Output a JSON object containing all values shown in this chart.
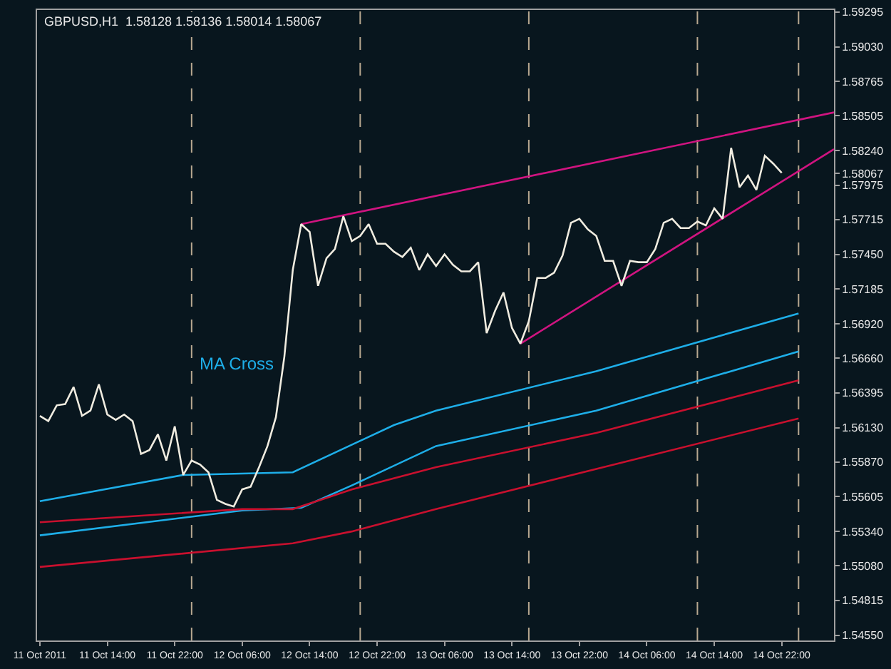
{
  "chart_data": {
    "type": "line",
    "title": "GBPUSD,H1  1.58128 1.58136 1.58014 1.58067",
    "annotations": [
      "MA Cross"
    ],
    "xlim": [
      "2011-10-11T05:40",
      "2011-10-15T04:12"
    ],
    "ylim": [
      1.5451,
      1.5931
    ],
    "xticks": [
      {
        "value": "2011-10-11T06:00",
        "label": "11 Oct 2011"
      },
      {
        "value": "2011-10-11T14:00",
        "label": "11 Oct 14:00"
      },
      {
        "value": "2011-10-11T22:00",
        "label": "11 Oct 22:00"
      },
      {
        "value": "2011-10-12T06:00",
        "label": "12 Oct 06:00"
      },
      {
        "value": "2011-10-12T14:00",
        "label": "12 Oct 14:00"
      },
      {
        "value": "2011-10-12T22:00",
        "label": "12 Oct 22:00"
      },
      {
        "value": "2011-10-13T06:00",
        "label": "13 Oct 06:00"
      },
      {
        "value": "2011-10-13T14:00",
        "label": "13 Oct 14:00"
      },
      {
        "value": "2011-10-13T22:00",
        "label": "13 Oct 22:00"
      },
      {
        "value": "2011-10-14T06:00",
        "label": "14 Oct 06:00"
      },
      {
        "value": "2011-10-14T14:00",
        "label": "14 Oct 14:00"
      },
      {
        "value": "2011-10-14T22:00",
        "label": "14 Oct 22:00"
      }
    ],
    "yticks": [
      {
        "value": 1.5455,
        "label": "1.54550"
      },
      1.54815,
      {
        "value": 1.5508,
        "label": "1.55080"
      },
      {
        "value": 1.5534,
        "label": "1.55340"
      },
      1.55605,
      {
        "value": 1.5587,
        "label": "1.55870"
      },
      {
        "value": 1.5613,
        "label": "1.56130"
      },
      1.56395,
      {
        "value": 1.5666,
        "label": "1.56660"
      },
      {
        "value": 1.5692,
        "label": "1.56920"
      },
      1.57185,
      {
        "value": 1.5745,
        "label": "1.57450"
      },
      1.57715,
      1.57975,
      1.58067,
      {
        "value": 1.5824,
        "label": "1.58240"
      },
      1.58505,
      1.58765,
      {
        "value": 1.5903,
        "label": "1.59030"
      },
      1.59295
    ],
    "grid": false,
    "marker": "none",
    "ref_lines": [
      {
        "axis": "x",
        "value": "2011-10-12T00:00",
        "color": "#b8a890",
        "line_style": "dashed"
      },
      {
        "axis": "x",
        "value": "2011-10-12T20:00",
        "color": "#b8a890",
        "line_style": "dashed"
      },
      {
        "axis": "x",
        "value": "2011-10-13T16:00",
        "color": "#b8a890",
        "line_style": "dashed"
      },
      {
        "axis": "x",
        "value": "2011-10-14T12:00",
        "color": "#b8a890",
        "line_style": "dashed"
      },
      {
        "axis": "x",
        "value": "2011-10-15T00:00",
        "color": "#b8a890",
        "line_style": "dashed"
      }
    ],
    "series": [
      {
        "color": "#1eaee8",
        "x": [
          "2011-10-11T06:00",
          "2011-10-11T23:00",
          "2011-10-12T12:00",
          "2011-10-13T00:00",
          "2011-10-13T05:00",
          "2011-10-14T00:00",
          "2011-10-15T00:00"
        ],
        "values": [
          1.5557,
          1.5577,
          1.5579,
          1.5615,
          1.5626,
          1.5656,
          1.57
        ]
      },
      {
        "color": "#1eaee8",
        "x": [
          "2011-10-11T06:00",
          "2011-10-12T06:00",
          "2011-10-12T13:00",
          "2011-10-12T19:00",
          "2011-10-13T05:00",
          "2011-10-14T00:00",
          "2011-10-15T00:00"
        ],
        "values": [
          1.5531,
          1.555,
          1.5552,
          1.5569,
          1.5599,
          1.5626,
          1.5671
        ]
      },
      {
        "color": "#c8102e",
        "x": [
          "2011-10-11T06:00",
          "2011-10-12T06:00",
          "2011-10-12T12:00",
          "2011-10-12T19:00",
          "2011-10-13T05:00",
          "2011-10-14T00:00",
          "2011-10-15T00:00"
        ],
        "values": [
          1.5541,
          1.5551,
          1.5551,
          1.5566,
          1.5583,
          1.5609,
          1.5649
        ]
      },
      {
        "color": "#c8102e",
        "x": [
          "2011-10-11T06:00",
          "2011-10-12T12:00",
          "2011-10-12T19:00",
          "2011-10-13T05:00",
          "2011-10-14T04:00",
          "2011-10-15T00:00"
        ],
        "values": [
          1.5507,
          1.5525,
          1.5534,
          1.5551,
          1.5588,
          1.562
        ]
      },
      {
        "color": "#d01480",
        "x": [
          "2011-10-12T13:00",
          "2011-10-15T04:12"
        ],
        "values": [
          1.5768,
          1.5853
        ]
      },
      {
        "color": "#d01480",
        "x": [
          "2011-10-13T15:00",
          "2011-10-15T04:12"
        ],
        "values": [
          1.5677,
          1.5825
        ]
      },
      {
        "color": "#f0ece0",
        "x": [
          "2011-10-11T06:00",
          "2011-10-11T07:00",
          "2011-10-11T08:00",
          "2011-10-11T09:00",
          "2011-10-11T10:00",
          "2011-10-11T11:00",
          "2011-10-11T12:00",
          "2011-10-11T13:00",
          "2011-10-11T14:00",
          "2011-10-11T15:00",
          "2011-10-11T16:00",
          "2011-10-11T17:00",
          "2011-10-11T18:00",
          "2011-10-11T19:00",
          "2011-10-11T20:00",
          "2011-10-11T21:00",
          "2011-10-11T22:00",
          "2011-10-11T23:00",
          "2011-10-12T00:00",
          "2011-10-12T01:00",
          "2011-10-12T02:00",
          "2011-10-12T03:00",
          "2011-10-12T04:00",
          "2011-10-12T05:00",
          "2011-10-12T06:00",
          "2011-10-12T07:00",
          "2011-10-12T08:00",
          "2011-10-12T09:00",
          "2011-10-12T10:00",
          "2011-10-12T11:00",
          "2011-10-12T12:00",
          "2011-10-12T13:00",
          "2011-10-12T14:00",
          "2011-10-12T15:00",
          "2011-10-12T16:00",
          "2011-10-12T17:00",
          "2011-10-12T18:00",
          "2011-10-12T19:00",
          "2011-10-12T20:00",
          "2011-10-12T21:00",
          "2011-10-12T22:00",
          "2011-10-12T23:00",
          "2011-10-13T00:00",
          "2011-10-13T01:00",
          "2011-10-13T02:00",
          "2011-10-13T03:00",
          "2011-10-13T04:00",
          "2011-10-13T05:00",
          "2011-10-13T06:00",
          "2011-10-13T07:00",
          "2011-10-13T08:00",
          "2011-10-13T09:00",
          "2011-10-13T10:00",
          "2011-10-13T11:00",
          "2011-10-13T12:00",
          "2011-10-13T13:00",
          "2011-10-13T14:00",
          "2011-10-13T15:00",
          "2011-10-13T16:00",
          "2011-10-13T17:00",
          "2011-10-13T18:00",
          "2011-10-13T19:00",
          "2011-10-13T20:00",
          "2011-10-13T21:00",
          "2011-10-13T22:00",
          "2011-10-13T23:00",
          "2011-10-14T00:00",
          "2011-10-14T01:00",
          "2011-10-14T02:00",
          "2011-10-14T03:00",
          "2011-10-14T04:00",
          "2011-10-14T05:00",
          "2011-10-14T06:00",
          "2011-10-14T07:00",
          "2011-10-14T08:00",
          "2011-10-14T09:00",
          "2011-10-14T10:00",
          "2011-10-14T11:00",
          "2011-10-14T12:00",
          "2011-10-14T13:00",
          "2011-10-14T14:00",
          "2011-10-14T15:00",
          "2011-10-14T16:00",
          "2011-10-14T17:00",
          "2011-10-14T18:00",
          "2011-10-14T19:00",
          "2011-10-14T20:00",
          "2011-10-14T21:00",
          "2011-10-14T22:00"
        ],
        "values": [
          1.5622,
          1.5618,
          1.563,
          1.5631,
          1.5644,
          1.5622,
          1.5626,
          1.5646,
          1.5623,
          1.5619,
          1.5623,
          1.5618,
          1.5593,
          1.5596,
          1.5608,
          1.5588,
          1.5614,
          1.5577,
          1.5588,
          1.5585,
          1.5579,
          1.5558,
          1.5555,
          1.5553,
          1.5566,
          1.5568,
          1.5583,
          1.5599,
          1.5621,
          1.5667,
          1.5733,
          1.5768,
          1.5762,
          1.5721,
          1.5742,
          1.5749,
          1.5774,
          1.5755,
          1.5759,
          1.5768,
          1.5753,
          1.5753,
          1.5747,
          1.5743,
          1.575,
          1.5733,
          1.5745,
          1.5736,
          1.5745,
          1.5737,
          1.5732,
          1.5732,
          1.5739,
          1.5685,
          1.5702,
          1.5716,
          1.5689,
          1.5677,
          1.5694,
          1.5727,
          1.5727,
          1.5731,
          1.5744,
          1.5769,
          1.5772,
          1.5764,
          1.5759,
          1.574,
          1.574,
          1.5721,
          1.574,
          1.5739,
          1.5739,
          1.5749,
          1.5769,
          1.5772,
          1.5765,
          1.5765,
          1.577,
          1.5767,
          1.578,
          1.5772,
          1.5826,
          1.5796,
          1.5805,
          1.5794,
          1.582,
          1.5814,
          1.5807
        ]
      }
    ]
  }
}
